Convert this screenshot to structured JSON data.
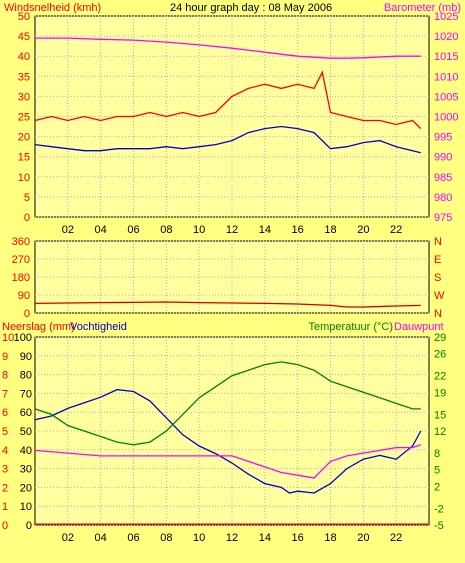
{
  "colors": {
    "background": "#ffff80",
    "plot_bg": "#ffffa0",
    "grid": "#b0b0b0",
    "wind_gust": "#ff0000",
    "wind_avg": "#0000cc",
    "barometer": "#ff00ff",
    "direction": "#cc0000",
    "humidity": "#0000cc",
    "temperature": "#008000",
    "dewpoint": "#ff00ff",
    "rain": "#ff0000"
  },
  "chart_data": [
    {
      "type": "line",
      "title": "24 hour graph day : 08 May 2006",
      "ylabel": "Windsnelheid (kmh)",
      "y2label": "Barometer (mb)",
      "x_ticks": [
        "02",
        "04",
        "06",
        "08",
        "10",
        "12",
        "14",
        "16",
        "18",
        "20",
        "22"
      ],
      "xlim": [
        0,
        24
      ],
      "ylim": [
        0,
        50
      ],
      "y_ticks": [
        0,
        5,
        10,
        15,
        20,
        25,
        30,
        35,
        40,
        45,
        50
      ],
      "y2lim": [
        975,
        1025
      ],
      "y2_ticks": [
        975,
        980,
        985,
        990,
        995,
        1000,
        1005,
        1010,
        1015,
        1020,
        1025
      ],
      "grid": true,
      "series": [
        {
          "key": "gust",
          "axis": "left",
          "color": "wind_gust",
          "x": [
            0,
            1,
            2,
            3,
            4,
            5,
            6,
            7,
            8,
            9,
            10,
            11,
            12,
            13,
            14,
            15,
            16,
            17,
            17.5,
            18,
            19,
            20,
            21,
            22,
            23,
            23.5
          ],
          "y": [
            24,
            25,
            24,
            25,
            24,
            25,
            25,
            26,
            25,
            26,
            25,
            26,
            30,
            32,
            33,
            32,
            33,
            32,
            36,
            26,
            25,
            24,
            24,
            23,
            24,
            22
          ]
        },
        {
          "key": "avg",
          "axis": "left",
          "color": "wind_avg",
          "x": [
            0,
            1,
            2,
            3,
            4,
            5,
            6,
            7,
            8,
            9,
            10,
            11,
            12,
            13,
            14,
            15,
            16,
            17,
            18,
            19,
            20,
            21,
            22,
            23,
            23.5
          ],
          "y": [
            18,
            17.5,
            17,
            16.5,
            16.5,
            17,
            17,
            17,
            17.5,
            17,
            17.5,
            18,
            19,
            21,
            22,
            22.5,
            22,
            21,
            17,
            17.5,
            18.5,
            19,
            17.5,
            16.5,
            16
          ]
        },
        {
          "key": "baro",
          "axis": "right",
          "color": "barometer",
          "x": [
            0,
            2,
            4,
            6,
            8,
            10,
            12,
            14,
            16,
            18,
            19,
            20,
            22,
            23.5
          ],
          "y": [
            1019.5,
            1019.5,
            1019.2,
            1019,
            1018.5,
            1017.8,
            1017,
            1016,
            1015,
            1014.5,
            1014.5,
            1014.6,
            1015,
            1015
          ]
        }
      ]
    },
    {
      "type": "line",
      "ylabel": "Windrichting",
      "xlim": [
        0,
        24
      ],
      "ylim": [
        0,
        360
      ],
      "y_ticks": [
        0,
        90,
        180,
        270,
        360
      ],
      "y2_labels": [
        "N",
        "W",
        "S",
        "E",
        "N"
      ],
      "grid": true,
      "series": [
        {
          "key": "dir",
          "axis": "left",
          "color": "direction",
          "x": [
            0,
            2,
            4,
            6,
            8,
            10,
            12,
            14,
            16,
            18,
            19,
            20,
            22,
            23.5
          ],
          "y": [
            48,
            50,
            52,
            53,
            55,
            52,
            50,
            48,
            45,
            38,
            30,
            30,
            35,
            38
          ]
        }
      ]
    },
    {
      "type": "line",
      "ylabel": "Neerslag (mm)",
      "ylabel2": "Vochtigheid",
      "y2label": "Temperatuur (°C)",
      "y2label2": "Dauwpunt",
      "x_ticks": [
        "02",
        "04",
        "06",
        "08",
        "10",
        "12",
        "14",
        "16",
        "18",
        "20",
        "22"
      ],
      "xlim": [
        0,
        24
      ],
      "ylim": [
        0,
        10
      ],
      "y_ticks": [
        0,
        1,
        2,
        3,
        4,
        5,
        6,
        7,
        8,
        9,
        10
      ],
      "humidity_lim": [
        0,
        100
      ],
      "humidity_ticks": [
        0,
        10,
        20,
        30,
        40,
        50,
        60,
        70,
        80,
        90,
        100
      ],
      "y2lim": [
        -5,
        29
      ],
      "y2_ticks": [
        -5,
        -2,
        2,
        5,
        8,
        12,
        15,
        19,
        22,
        26,
        29
      ],
      "grid": true,
      "series": [
        {
          "key": "rain",
          "axis": "left",
          "color": "rain",
          "x": [
            0,
            24
          ],
          "y": [
            0.05,
            0.05
          ]
        },
        {
          "key": "hum",
          "axis": "humidity",
          "color": "humidity",
          "x": [
            0,
            1,
            2,
            3,
            4,
            5,
            6,
            7,
            8,
            9,
            10,
            11,
            12,
            13,
            14,
            15,
            15.5,
            16,
            17,
            18,
            19,
            20,
            21,
            22,
            23,
            23.5
          ],
          "y": [
            56,
            58,
            62,
            65,
            68,
            72,
            71,
            66,
            57,
            48,
            42,
            38,
            33,
            27,
            22,
            20,
            17,
            18,
            17,
            22,
            30,
            35,
            37,
            35,
            42,
            50
          ]
        },
        {
          "key": "temp",
          "axis": "right",
          "color": "temperature",
          "x": [
            0,
            1,
            2,
            3,
            4,
            5,
            6,
            7,
            8,
            9,
            10,
            11,
            12,
            13,
            14,
            15,
            16,
            17,
            18,
            19,
            20,
            21,
            22,
            23,
            23.5
          ],
          "y": [
            16,
            15,
            13,
            12,
            11,
            10,
            9.5,
            10,
            12,
            15,
            18,
            20,
            22,
            23,
            24,
            24.5,
            24,
            23,
            21,
            20,
            19,
            18,
            17,
            16,
            16
          ]
        },
        {
          "key": "dew",
          "axis": "right",
          "color": "dewpoint",
          "x": [
            0,
            2,
            4,
            6,
            8,
            10,
            12,
            13,
            14,
            15,
            16,
            17,
            18,
            19,
            20,
            21,
            22,
            23,
            23.5
          ],
          "y": [
            8.5,
            8,
            7.5,
            7.5,
            7.5,
            7.5,
            7.5,
            6.5,
            5.5,
            4.5,
            4,
            3.5,
            6.5,
            7.5,
            8,
            8.5,
            9,
            9,
            9.5
          ]
        }
      ]
    }
  ]
}
